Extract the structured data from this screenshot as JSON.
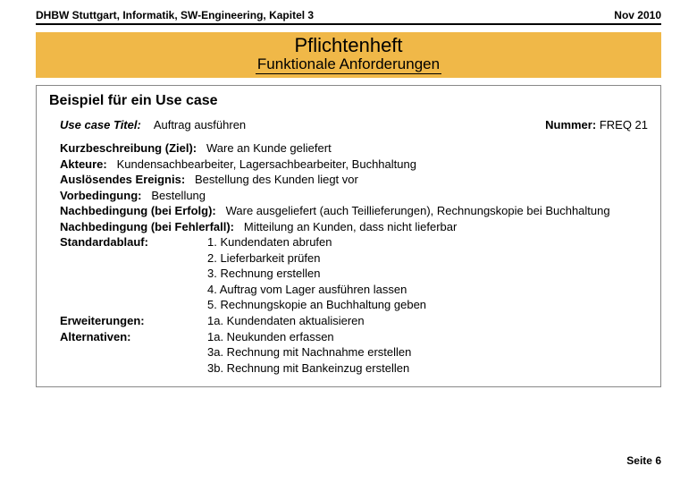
{
  "header": {
    "left": "DHBW Stuttgart, Informatik, SW-Engineering, Kapitel 3",
    "right": "Nov 2010"
  },
  "banner": {
    "title": "Pflichtenheft",
    "subtitle": "Funktionale Anforderungen"
  },
  "section_heading": "Beispiel für ein Use case",
  "usecase": {
    "title_label": "Use case Titel:",
    "title_value": "Auftrag ausführen",
    "number_label": "Nummer:",
    "number_value": "FREQ 21",
    "kurzbeschreibung_label": "Kurzbeschreibung (Ziel):",
    "kurzbeschreibung_value": "Ware an Kunde geliefert",
    "akteure_label": "Akteure:",
    "akteure_value": "Kundensachbearbeiter, Lagersachbearbeiter, Buchhaltung",
    "ausloesendes_label": "Auslösendes Ereignis:",
    "ausloesendes_value": "Bestellung des Kunden liegt vor",
    "vorbedingung_label": "Vorbedingung:",
    "vorbedingung_value": "Bestellung",
    "nach_erfolg_label": "Nachbedingung (bei Erfolg):",
    "nach_erfolg_value": "Ware ausgeliefert (auch Teillieferungen), Rechnungskopie bei Buchhaltung",
    "nach_fehler_label": "Nachbedingung (bei Fehlerfall):",
    "nach_fehler_value": "Mitteilung an Kunden, dass nicht lieferbar",
    "standardablauf_label": "Standardablauf:",
    "standardablauf_steps": [
      "1. Kundendaten abrufen",
      "2. Lieferbarkeit prüfen",
      "3. Rechnung erstellen",
      "4. Auftrag vom Lager ausführen lassen",
      "5. Rechnungskopie an Buchhaltung geben"
    ],
    "erweiterungen_label": "Erweiterungen:",
    "erweiterungen_value": "1a. Kundendaten aktualisieren",
    "alternativen_label": "Alternativen:",
    "alternativen_steps": [
      "1a. Neukunden erfassen",
      "3a. Rechnung mit Nachnahme erstellen",
      "3b. Rechnung mit Bankeinzug erstellen"
    ]
  },
  "footer": "Seite 6"
}
